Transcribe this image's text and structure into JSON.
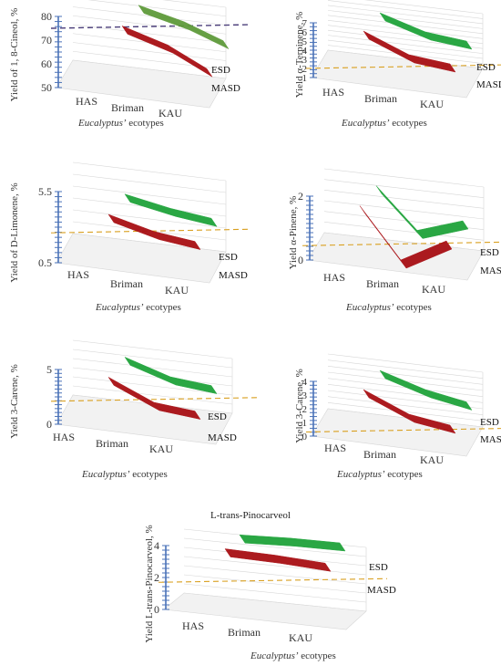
{
  "colors": {
    "masd": "#A80F14",
    "esd": "#1FA33A",
    "esd_panel1": "#5E9A3A",
    "axis": "#4A72B8",
    "grid": "#D6D6D6",
    "ref_line_orange": "#D9A020",
    "ref_line_purple": "#4B3E7A",
    "panel_floor": "#F2F2F2"
  },
  "middle_title": "L-trans-Pinocarveol",
  "chart_data": [
    {
      "id": "cineol",
      "type": "line",
      "ylabel": "Yield of 1, 8-Cineol, %",
      "xlabel_italic": "Eucalyptus’",
      "xlabel_rest": " ecotypes",
      "categories": [
        "HAS",
        "Briman",
        "KAU"
      ],
      "ytick_labels": [
        "50",
        "60",
        "70",
        "80"
      ],
      "ylim": [
        50,
        80
      ],
      "reference_line": 75,
      "reference_color": "purple",
      "series": [
        {
          "name": "ESD",
          "values": [
            79,
            72,
            64
          ],
          "color": "esd_panel1"
        },
        {
          "name": "MASD",
          "values": [
            76,
            68,
            58
          ],
          "color": "masd"
        }
      ]
    },
    {
      "id": "terpinene",
      "type": "line",
      "ylabel": "Yield α-Terpinene, %",
      "xlabel_italic": "Eucalyptus’",
      "xlabel_rest": " ecotypes",
      "categories": [
        "HAS",
        "Briman",
        "KAU"
      ],
      "ytick_labels": [
        "1",
        "2",
        "3",
        "4",
        "5",
        "6",
        "7"
      ],
      "ylim": [
        1,
        7
      ],
      "reference_line": 2,
      "reference_color": "orange",
      "series": [
        {
          "name": "ESD",
          "values": [
            6.6,
            4.5,
            3.5
          ],
          "color": "esd"
        },
        {
          "name": "MASD",
          "values": [
            6.1,
            3.5,
            2.5
          ],
          "color": "masd"
        }
      ]
    },
    {
      "id": "limonene",
      "type": "line",
      "ylabel": "Yield of D-Limonene, %",
      "xlabel_italic": "Eucalyptus’",
      "xlabel_rest": " ecotypes",
      "categories": [
        "HAS",
        "Briman",
        "KAU"
      ],
      "ytick_labels": [
        "0.5",
        "5.5"
      ],
      "ylim": [
        0.5,
        5.5
      ],
      "reference_line": 2.6,
      "reference_color": "orange",
      "series": [
        {
          "name": "ESD",
          "values": [
            4.3,
            3.3,
            2.6
          ],
          "color": "esd"
        },
        {
          "name": "MASD",
          "values": [
            3.9,
            2.7,
            2.0
          ],
          "color": "masd"
        }
      ]
    },
    {
      "id": "pinene",
      "type": "line",
      "ylabel": "Yield α-Pinene, %",
      "xlabel_italic": "Eucalyptus’",
      "xlabel_rest": " ecotypes",
      "categories": [
        "HAS",
        "Briman",
        "KAU"
      ],
      "ytick_labels": [
        "0",
        "2"
      ],
      "ylim": [
        0,
        2
      ],
      "reference_line": 0.45,
      "reference_color": "orange",
      "series": [
        {
          "name": "ESD",
          "values": [
            1.9,
            0.5,
            0.8
          ],
          "color": "esd"
        },
        {
          "name": "MASD",
          "values": [
            1.7,
            0.0,
            0.6
          ],
          "color": "masd"
        }
      ]
    },
    {
      "id": "carene_a",
      "type": "line",
      "ylabel": "Yield 3-Carene, %",
      "xlabel_italic": "Eucalyptus’",
      "xlabel_rest": " ecotypes",
      "categories": [
        "HAS",
        "Briman",
        "KAU"
      ],
      "ytick_labels": [
        "0",
        "5"
      ],
      "ylim": [
        0,
        5
      ],
      "reference_line": 2.1,
      "reference_color": "orange",
      "series": [
        {
          "name": "ESD",
          "values": [
            4.8,
            3.0,
            2.2
          ],
          "color": "esd"
        },
        {
          "name": "MASD",
          "values": [
            4.3,
            2.0,
            1.2
          ],
          "color": "masd"
        }
      ]
    },
    {
      "id": "carene_b",
      "type": "line",
      "ylabel": "Yield 3-Carene, %",
      "xlabel_italic": "Eucalyptus’",
      "xlabel_rest": " ecotypes",
      "categories": [
        "HAS",
        "Briman",
        "KAU"
      ],
      "ytick_labels": [
        "0",
        "1",
        "2",
        "3",
        "4"
      ],
      "ylim": [
        0,
        4
      ],
      "reference_line": 0.3,
      "reference_color": "orange",
      "series": [
        {
          "name": "ESD",
          "values": [
            3.8,
            2.4,
            1.5
          ],
          "color": "esd"
        },
        {
          "name": "MASD",
          "values": [
            3.4,
            1.6,
            0.8
          ],
          "color": "masd"
        }
      ]
    },
    {
      "id": "pinocarveol",
      "type": "line",
      "ylabel": "Yield L-trans-Pinocarveol, %",
      "xlabel_italic": "Eucalyptus’",
      "xlabel_rest": " ecotypes",
      "categories": [
        "HAS",
        "Briman",
        "KAU"
      ],
      "ytick_labels": [
        "0",
        "2",
        "4"
      ],
      "ylim": [
        0,
        4
      ],
      "reference_line": 1.7,
      "reference_color": "orange",
      "series": [
        {
          "name": "ESD",
          "values": [
            4.1,
            3.9,
            3.6
          ],
          "color": "esd"
        },
        {
          "name": "MASD",
          "values": [
            3.8,
            3.4,
            2.9
          ],
          "color": "masd"
        }
      ]
    }
  ]
}
